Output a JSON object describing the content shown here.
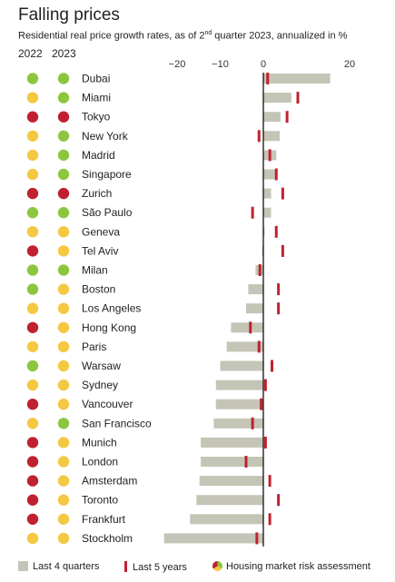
{
  "title": "Falling prices",
  "subtitle_main": "Residential real price growth rates, as of 2",
  "subtitle_sup": "nd",
  "subtitle_rest": " quarter 2023, annualized in %",
  "year_2022": "2022",
  "year_2023": "2023",
  "legend": {
    "bar": "Last 4 quarters",
    "tick": "Last 5 years",
    "risk": "Housing market risk assessment"
  },
  "colors": {
    "green": "#8cc63f",
    "yellow": "#f5c842",
    "red": "#c0212f",
    "bar": "#c5c5b7",
    "tick": "#c0212f"
  },
  "chart_data": {
    "type": "bar",
    "orientation": "horizontal",
    "xlim": [
      -23,
      20
    ],
    "x_ticks": [
      -20,
      -10,
      0,
      20
    ],
    "x_tick_labels": [
      "−20",
      "−10",
      "0",
      "20"
    ],
    "categories": [
      "Dubai",
      "Miami",
      "Tokyo",
      "New York",
      "Madrid",
      "Singapore",
      "Zurich",
      "São Paulo",
      "Geneva",
      "Tel Aviv",
      "Milan",
      "Boston",
      "Los Angeles",
      "Hong Kong",
      "Paris",
      "Warsaw",
      "Sydney",
      "Vancouver",
      "San Francisco",
      "Munich",
      "London",
      "Amsterdam",
      "Toronto",
      "Frankfurt",
      "Stockholm"
    ],
    "series": [
      {
        "name": "Last 4 quarters",
        "values": [
          15.5,
          6.5,
          4.0,
          3.8,
          3.0,
          2.8,
          1.8,
          1.8,
          0.3,
          -0.3,
          -1.8,
          -3.5,
          -4.0,
          -7.5,
          -8.5,
          -10.0,
          -11.0,
          -11.0,
          -11.5,
          -14.5,
          -14.5,
          -14.8,
          -15.5,
          -17.0,
          -23.0
        ]
      },
      {
        "name": "Last 5 years",
        "values": [
          1.0,
          8.0,
          5.5,
          -1.0,
          1.5,
          3.0,
          4.5,
          -2.5,
          3.0,
          4.5,
          -0.8,
          3.5,
          3.5,
          -3.0,
          -1.0,
          2.0,
          0.5,
          -0.5,
          -2.5,
          0.5,
          -4.0,
          1.5,
          3.5,
          1.5,
          -1.5
        ]
      }
    ],
    "risk_2022": [
      "green",
      "yellow",
      "red",
      "yellow",
      "yellow",
      "yellow",
      "red",
      "green",
      "yellow",
      "red",
      "green",
      "green",
      "yellow",
      "red",
      "yellow",
      "green",
      "yellow",
      "red",
      "yellow",
      "red",
      "red",
      "red",
      "red",
      "red",
      "yellow"
    ],
    "risk_2023": [
      "green",
      "green",
      "red",
      "green",
      "green",
      "green",
      "red",
      "green",
      "yellow",
      "yellow",
      "green",
      "yellow",
      "yellow",
      "yellow",
      "yellow",
      "yellow",
      "yellow",
      "yellow",
      "green",
      "yellow",
      "yellow",
      "yellow",
      "yellow",
      "yellow",
      "yellow"
    ]
  }
}
